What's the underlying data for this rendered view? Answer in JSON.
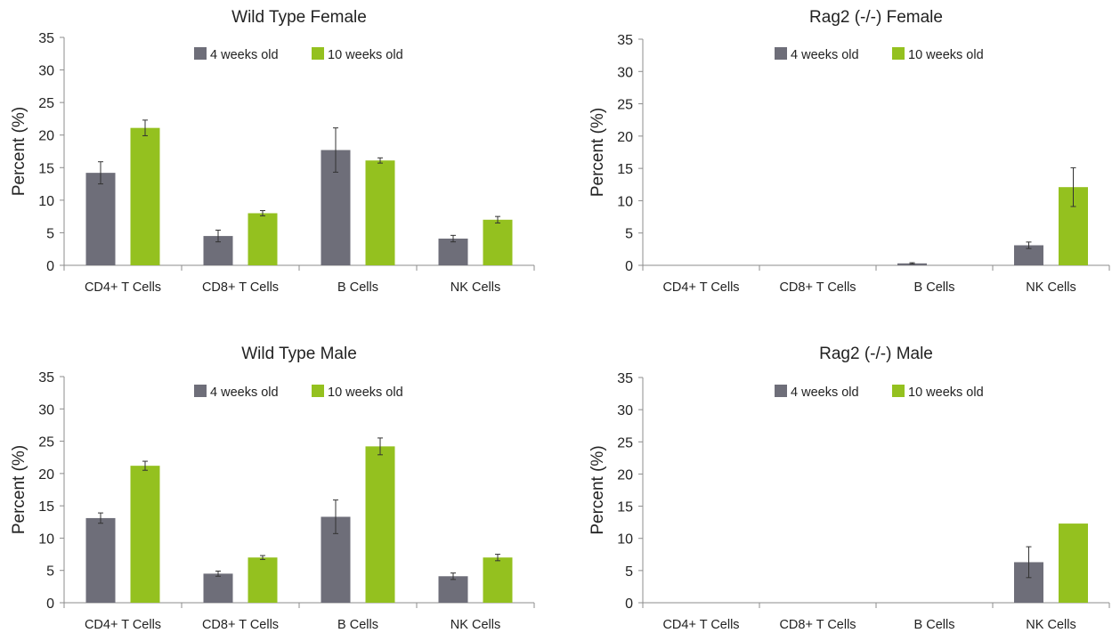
{
  "chart_data": [
    {
      "type": "bar",
      "title": "Wild Type Female",
      "ylabel": "Percent (%)",
      "xlabel": "",
      "ylim": [
        0,
        35
      ],
      "yticks": [
        0,
        5,
        10,
        15,
        20,
        25,
        30,
        35
      ],
      "grid": false,
      "legend": "top-center",
      "categories": [
        "CD4+ T Cells",
        "CD8+ T Cells",
        "B Cells",
        "NK Cells"
      ],
      "series": [
        {
          "name": "4 weeks old",
          "color": "#6e6e79",
          "values": [
            14.2,
            4.5,
            17.7,
            4.1
          ],
          "errors": [
            1.7,
            0.9,
            3.4,
            0.5
          ]
        },
        {
          "name": "10 weeks old",
          "color": "#94c11f",
          "values": [
            21.1,
            8.0,
            16.1,
            7.0
          ],
          "errors": [
            1.2,
            0.4,
            0.4,
            0.5
          ]
        }
      ]
    },
    {
      "type": "bar",
      "title": "Rag2 (-/-) Female",
      "ylabel": "Percent (%)",
      "xlabel": "",
      "ylim": [
        0,
        35
      ],
      "yticks": [
        0,
        5,
        10,
        15,
        20,
        25,
        30,
        35
      ],
      "grid": false,
      "legend": "top-center",
      "categories": [
        "CD4+ T Cells",
        "CD8+ T Cells",
        "B Cells",
        "NK Cells"
      ],
      "series": [
        {
          "name": "4 weeks old",
          "color": "#6e6e79",
          "values": [
            0,
            0,
            0.3,
            3.1
          ],
          "errors": [
            0,
            0,
            0.1,
            0.5
          ]
        },
        {
          "name": "10 weeks old",
          "color": "#94c11f",
          "values": [
            0,
            0,
            0,
            12.1
          ],
          "errors": [
            0,
            0,
            0,
            3.0
          ]
        }
      ]
    },
    {
      "type": "bar",
      "title": "Wild Type Male",
      "ylabel": "Percent (%)",
      "xlabel": "",
      "ylim": [
        0,
        35
      ],
      "yticks": [
        0,
        5,
        10,
        15,
        20,
        25,
        30,
        35
      ],
      "grid": false,
      "legend": "top-center",
      "categories": [
        "CD4+ T Cells",
        "CD8+ T Cells",
        "B Cells",
        "NK Cells"
      ],
      "series": [
        {
          "name": "4 weeks old",
          "color": "#6e6e79",
          "values": [
            13.1,
            4.5,
            13.3,
            4.1
          ],
          "errors": [
            0.8,
            0.4,
            2.6,
            0.5
          ]
        },
        {
          "name": "10 weeks old",
          "color": "#94c11f",
          "values": [
            21.2,
            7.0,
            24.2,
            7.0
          ],
          "errors": [
            0.7,
            0.3,
            1.3,
            0.5
          ]
        }
      ]
    },
    {
      "type": "bar",
      "title": "Rag2 (-/-) Male",
      "ylabel": "Percent (%)",
      "xlabel": "",
      "ylim": [
        0,
        35
      ],
      "yticks": [
        0,
        5,
        10,
        15,
        20,
        25,
        30,
        35
      ],
      "grid": false,
      "legend": "top-center",
      "categories": [
        "CD4+ T Cells",
        "CD8+ T Cells",
        "B Cells",
        "NK Cells"
      ],
      "series": [
        {
          "name": "4 weeks old",
          "color": "#6e6e79",
          "values": [
            0,
            0,
            0,
            6.3
          ],
          "errors": [
            0,
            0,
            0,
            2.4
          ]
        },
        {
          "name": "10 weeks old",
          "color": "#94c11f",
          "values": [
            0,
            0,
            0,
            12.3
          ],
          "errors": [
            0,
            0,
            0,
            0
          ]
        }
      ]
    }
  ]
}
